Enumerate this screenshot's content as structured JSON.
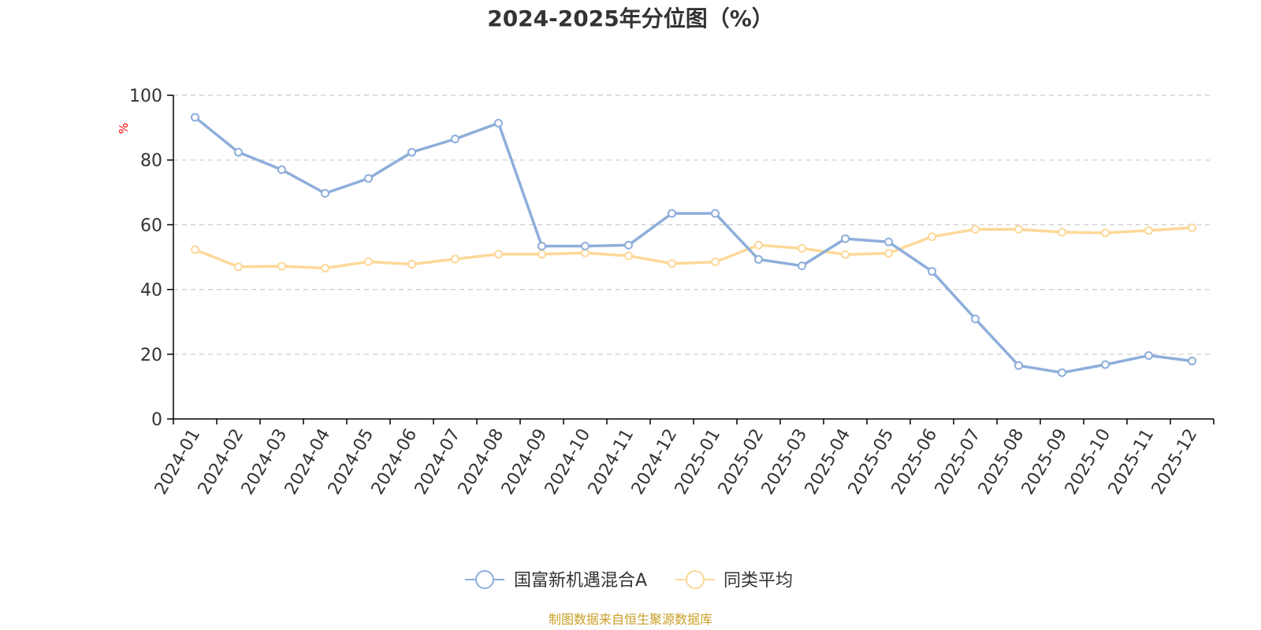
{
  "chart_data": {
    "type": "line",
    "title": "2024-2025年分位图（%）",
    "xlabel": "",
    "ylabel": "%",
    "ylim": [
      0,
      100
    ],
    "yticks": [
      0,
      20,
      40,
      60,
      80,
      100
    ],
    "grid": true,
    "legend_position": "bottom-center",
    "categories": [
      "2024-01",
      "2024-02",
      "2024-03",
      "2024-04",
      "2024-05",
      "2024-06",
      "2024-07",
      "2024-08",
      "2024-09",
      "2024-10",
      "2024-11",
      "2024-12",
      "2025-01",
      "2025-02",
      "2025-03",
      "2025-04",
      "2025-05",
      "2025-06",
      "2025-07",
      "2025-08",
      "2025-09",
      "2025-10",
      "2025-11",
      "2025-12"
    ],
    "series": [
      {
        "name": "国富新机遇混合A",
        "color": "#8eaedb",
        "values": [
          93.2,
          82.4,
          77.0,
          69.7,
          74.3,
          82.4,
          86.5,
          91.4,
          53.4,
          53.4,
          53.7,
          63.5,
          63.5,
          49.3,
          47.3,
          55.7,
          54.7,
          45.6,
          30.9,
          16.5,
          14.3,
          16.8,
          19.6,
          17.9
        ]
      },
      {
        "name": "同类平均",
        "color": "#fdd898",
        "values": [
          52.3,
          47.0,
          47.2,
          46.6,
          48.6,
          47.8,
          49.4,
          50.9,
          50.9,
          51.3,
          50.4,
          48.0,
          48.5,
          53.7,
          52.7,
          50.8,
          51.2,
          56.3,
          58.6,
          58.6,
          57.7,
          57.5,
          58.2,
          59.1
        ]
      }
    ],
    "colors": {
      "axis": "#000000",
      "grid": "#cccccc",
      "text": "#333333",
      "unit_label": "#ff0000",
      "source": "#c8a028"
    }
  },
  "footer": {
    "source": "制图数据来自恒生聚源数据库"
  }
}
